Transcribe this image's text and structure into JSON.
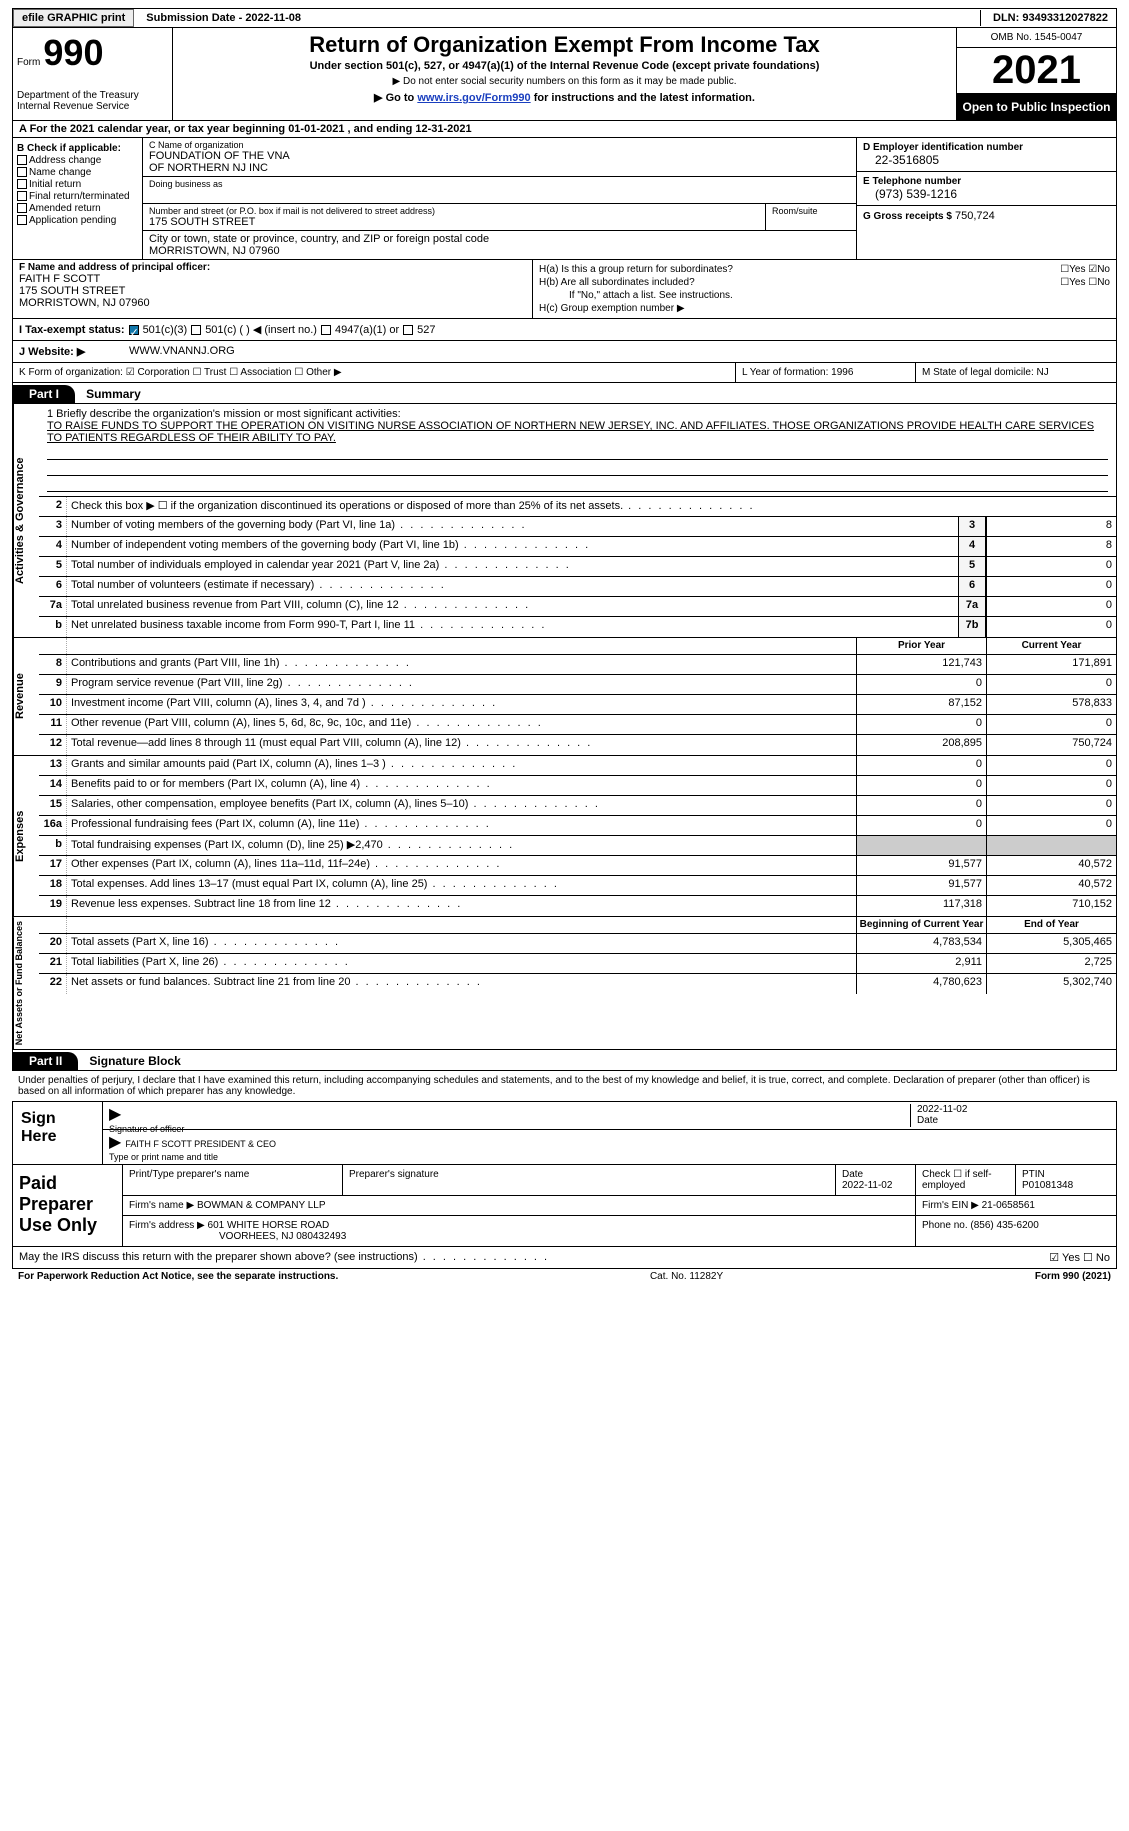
{
  "topbar": {
    "efile": "efile GRAPHIC print",
    "submission": "Submission Date - 2022-11-08",
    "dln": "DLN: 93493312027822"
  },
  "header": {
    "form_label": "Form",
    "form_number": "990",
    "dept": "Department of the Treasury",
    "irs": "Internal Revenue Service",
    "title": "Return of Organization Exempt From Income Tax",
    "subtitle": "Under section 501(c), 527, or 4947(a)(1) of the Internal Revenue Code (except private foundations)",
    "warn": "▶ Do not enter social security numbers on this form as it may be made public.",
    "goto_pre": "▶ Go to ",
    "goto_link": "www.irs.gov/Form990",
    "goto_post": " for instructions and the latest information.",
    "omb": "OMB No. 1545-0047",
    "year": "2021",
    "inspect": "Open to Public Inspection"
  },
  "lineA": "A  For the 2021 calendar year, or tax year beginning 01-01-2021    , and ending 12-31-2021",
  "colB": {
    "title": "B Check if applicable:",
    "opts": [
      "Address change",
      "Name change",
      "Initial return",
      "Final return/terminated",
      "Amended return",
      "Application pending"
    ]
  },
  "colC": {
    "name_lbl": "C Name of organization",
    "name": "FOUNDATION OF THE VNA\nOF NORTHERN NJ INC",
    "dba_lbl": "Doing business as",
    "addr_lbl": "Number and street (or P.O. box if mail is not delivered to street address)",
    "addr": "175 SOUTH STREET",
    "room_lbl": "Room/suite",
    "city_lbl": "City or town, state or province, country, and ZIP or foreign postal code",
    "city": "MORRISTOWN, NJ  07960"
  },
  "colD": {
    "ein_lbl": "D Employer identification number",
    "ein": "22-3516805",
    "tel_lbl": "E Telephone number",
    "tel": "(973) 539-1216",
    "gross_lbl": "G Gross receipts $",
    "gross": "750,724"
  },
  "rowF": {
    "lbl": "F Name and address of principal officer:",
    "name": "FAITH F SCOTT",
    "addr1": "175 SOUTH STREET",
    "addr2": "MORRISTOWN, NJ  07960"
  },
  "rowH": {
    "ha": "H(a)  Is this a group return for subordinates?",
    "hb": "H(b)  Are all subordinates included?",
    "hb_note": "If \"No,\" attach a list. See instructions.",
    "hc": "H(c)  Group exemption number ▶"
  },
  "rowI": {
    "lbl": "I    Tax-exempt status:",
    "opt1": "501(c)(3)",
    "opt2": "501(c) (  ) ◀ (insert no.)",
    "opt3": "4947(a)(1) or",
    "opt4": "527"
  },
  "rowJ": {
    "lbl": "J   Website: ▶",
    "val": "WWW.VNANNJ.ORG"
  },
  "rowK": {
    "k1": "K Form of organization:  ☑ Corporation  ☐ Trust  ☐ Association  ☐ Other ▶",
    "k2": "L Year of formation: 1996",
    "k3": "M State of legal domicile: NJ"
  },
  "part1": {
    "hdr": "Part I",
    "title": "Summary"
  },
  "mission": {
    "q": "1   Briefly describe the organization's mission or most significant activities:",
    "txt": "TO RAISE FUNDS TO SUPPORT THE OPERATION ON VISITING NURSE ASSOCIATION OF NORTHERN NEW JERSEY, INC. AND AFFILIATES. THOSE ORGANIZATIONS PROVIDE HEALTH CARE SERVICES TO PATIENTS REGARDLESS OF THEIR ABILITY TO PAY."
  },
  "gov_rows": [
    {
      "n": "2",
      "d": "Check this box ▶ ☐ if the organization discontinued its operations or disposed of more than 25% of its net assets."
    },
    {
      "n": "3",
      "d": "Number of voting members of the governing body (Part VI, line 1a)",
      "box": "3",
      "v": "8"
    },
    {
      "n": "4",
      "d": "Number of independent voting members of the governing body (Part VI, line 1b)",
      "box": "4",
      "v": "8"
    },
    {
      "n": "5",
      "d": "Total number of individuals employed in calendar year 2021 (Part V, line 2a)",
      "box": "5",
      "v": "0"
    },
    {
      "n": "6",
      "d": "Total number of volunteers (estimate if necessary)",
      "box": "6",
      "v": "0"
    },
    {
      "n": "7a",
      "d": "Total unrelated business revenue from Part VIII, column (C), line 12",
      "box": "7a",
      "v": "0"
    },
    {
      "n": "b",
      "d": "Net unrelated business taxable income from Form 990-T, Part I, line 11",
      "box": "7b",
      "v": "0"
    }
  ],
  "col_hdrs": {
    "prior": "Prior Year",
    "current": "Current Year",
    "boy": "Beginning of Current Year",
    "eoy": "End of Year"
  },
  "rev_rows": [
    {
      "n": "8",
      "d": "Contributions and grants (Part VIII, line 1h)",
      "p": "121,743",
      "c": "171,891"
    },
    {
      "n": "9",
      "d": "Program service revenue (Part VIII, line 2g)",
      "p": "0",
      "c": "0"
    },
    {
      "n": "10",
      "d": "Investment income (Part VIII, column (A), lines 3, 4, and 7d )",
      "p": "87,152",
      "c": "578,833"
    },
    {
      "n": "11",
      "d": "Other revenue (Part VIII, column (A), lines 5, 6d, 8c, 9c, 10c, and 11e)",
      "p": "0",
      "c": "0"
    },
    {
      "n": "12",
      "d": "Total revenue—add lines 8 through 11 (must equal Part VIII, column (A), line 12)",
      "p": "208,895",
      "c": "750,724"
    }
  ],
  "exp_rows": [
    {
      "n": "13",
      "d": "Grants and similar amounts paid (Part IX, column (A), lines 1–3 )",
      "p": "0",
      "c": "0"
    },
    {
      "n": "14",
      "d": "Benefits paid to or for members (Part IX, column (A), line 4)",
      "p": "0",
      "c": "0"
    },
    {
      "n": "15",
      "d": "Salaries, other compensation, employee benefits (Part IX, column (A), lines 5–10)",
      "p": "0",
      "c": "0"
    },
    {
      "n": "16a",
      "d": "Professional fundraising fees (Part IX, column (A), line 11e)",
      "p": "0",
      "c": "0"
    },
    {
      "n": "b",
      "d": "Total fundraising expenses (Part IX, column (D), line 25) ▶2,470",
      "shaded": true
    },
    {
      "n": "17",
      "d": "Other expenses (Part IX, column (A), lines 11a–11d, 11f–24e)",
      "p": "91,577",
      "c": "40,572"
    },
    {
      "n": "18",
      "d": "Total expenses. Add lines 13–17 (must equal Part IX, column (A), line 25)",
      "p": "91,577",
      "c": "40,572"
    },
    {
      "n": "19",
      "d": "Revenue less expenses. Subtract line 18 from line 12",
      "p": "117,318",
      "c": "710,152"
    }
  ],
  "net_rows": [
    {
      "n": "20",
      "d": "Total assets (Part X, line 16)",
      "p": "4,783,534",
      "c": "5,305,465"
    },
    {
      "n": "21",
      "d": "Total liabilities (Part X, line 26)",
      "p": "2,911",
      "c": "2,725"
    },
    {
      "n": "22",
      "d": "Net assets or fund balances. Subtract line 21 from line 20",
      "p": "4,780,623",
      "c": "5,302,740"
    }
  ],
  "side": {
    "gov": "Activities & Governance",
    "rev": "Revenue",
    "exp": "Expenses",
    "net": "Net Assets or Fund Balances"
  },
  "part2": {
    "hdr": "Part II",
    "title": "Signature Block"
  },
  "sig": {
    "intro": "Under penalties of perjury, I declare that I have examined this return, including accompanying schedules and statements, and to the best of my knowledge and belief, it is true, correct, and complete. Declaration of preparer (other than officer) is based on all information of which preparer has any knowledge.",
    "here": "Sign Here",
    "sig_lbl": "Signature of officer",
    "date": "2022-11-02",
    "date_lbl": "Date",
    "name": "FAITH F SCOTT  PRESIDENT & CEO",
    "name_lbl": "Type or print name and title"
  },
  "prep": {
    "lbl": "Paid Preparer Use Only",
    "h1": "Print/Type preparer's name",
    "h2": "Preparer's signature",
    "h3": "Date",
    "h3v": "2022-11-02",
    "h4": "Check ☐ if self-employed",
    "h5": "PTIN",
    "h5v": "P01081348",
    "firm_lbl": "Firm's name    ▶",
    "firm": "BOWMAN & COMPANY LLP",
    "ein_lbl": "Firm's EIN ▶",
    "ein": "21-0658561",
    "addr_lbl": "Firm's address ▶",
    "addr1": "601 WHITE HORSE ROAD",
    "addr2": "VOORHEES, NJ  080432493",
    "phone_lbl": "Phone no.",
    "phone": "(856) 435-6200"
  },
  "discuss": "May the IRS discuss this return with the preparer shown above? (see instructions)",
  "footer": {
    "left": "For Paperwork Reduction Act Notice, see the separate instructions.",
    "mid": "Cat. No. 11282Y",
    "right": "Form 990 (2021)"
  },
  "colors": {
    "link": "#1a3fbf"
  }
}
